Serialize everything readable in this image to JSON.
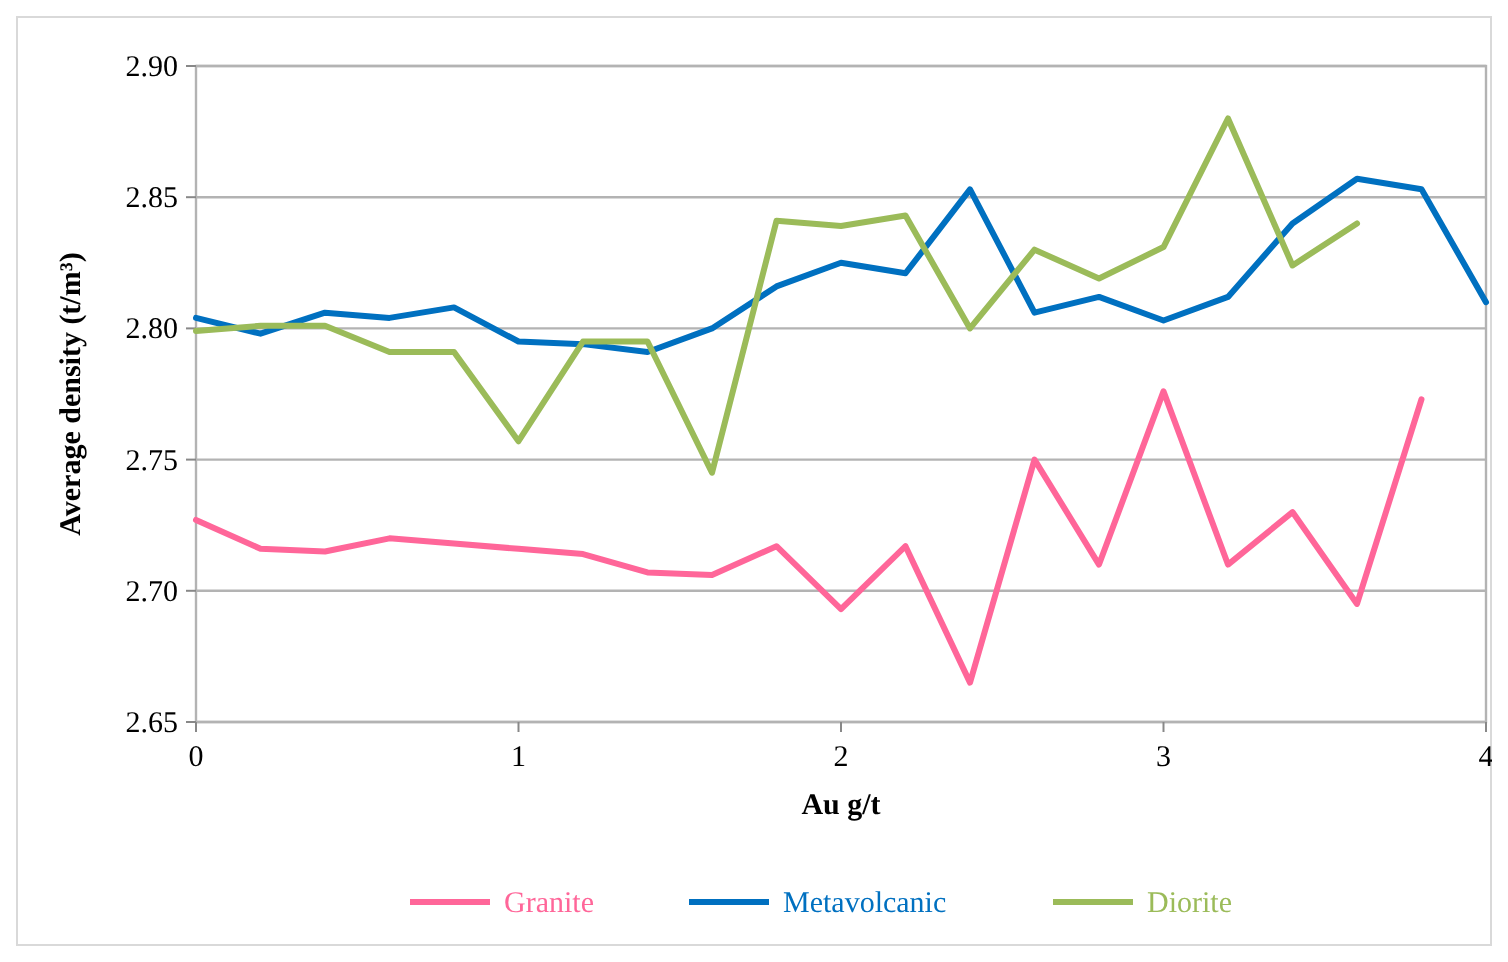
{
  "chart_data": {
    "type": "line",
    "xlabel": "Au g/t",
    "ylabel": "Average density (t/m³)",
    "xlim": [
      0,
      4
    ],
    "xticks": [
      0,
      1,
      2,
      3,
      4
    ],
    "ylim": [
      2.65,
      2.9
    ],
    "yticks": [
      {
        "value": 2.65,
        "label": "2.65"
      },
      {
        "value": 2.7,
        "label": "2.70"
      },
      {
        "value": 2.75,
        "label": "2.75"
      },
      {
        "value": 2.8,
        "label": "2.80"
      },
      {
        "value": 2.85,
        "label": "2.85"
      },
      {
        "value": 2.9,
        "label": "2.90"
      }
    ],
    "grid": "y",
    "legend": "bottom",
    "marker": "none",
    "line_style": "solid",
    "series": [
      {
        "name": "Granite",
        "color": "#ff6699",
        "x": [
          0,
          0.2,
          0.4,
          0.6,
          0.8,
          1,
          1.2,
          1.4,
          1.6,
          1.8,
          2,
          2.2,
          2.4,
          2.6,
          2.8,
          3,
          3.2,
          3.4,
          3.6,
          3.8
        ],
        "values": [
          2.727,
          2.716,
          2.715,
          2.72,
          2.718,
          2.716,
          2.714,
          2.707,
          2.706,
          2.717,
          2.693,
          2.717,
          2.665,
          2.75,
          2.71,
          2.776,
          2.71,
          2.73,
          2.695,
          2.773
        ]
      },
      {
        "name": "Metavolcanic",
        "color": "#0070c0",
        "x": [
          0,
          0.2,
          0.4,
          0.6,
          0.8,
          1,
          1.2,
          1.4,
          1.6,
          1.8,
          2,
          2.2,
          2.4,
          2.6,
          2.8,
          3,
          3.2,
          3.4,
          3.6,
          3.8,
          4
        ],
        "values": [
          2.804,
          2.798,
          2.806,
          2.804,
          2.808,
          2.795,
          2.794,
          2.791,
          2.8,
          2.816,
          2.825,
          2.821,
          2.853,
          2.806,
          2.812,
          2.803,
          2.812,
          2.84,
          2.857,
          2.853,
          2.81
        ]
      },
      {
        "name": "Diorite",
        "color": "#9bbb59",
        "x": [
          0,
          0.2,
          0.4,
          0.6,
          0.8,
          1,
          1.2,
          1.4,
          1.6,
          1.8,
          2,
          2.2,
          2.4,
          2.6,
          2.8,
          3,
          3.2,
          3.4,
          3.6
        ],
        "values": [
          2.799,
          2.801,
          2.801,
          2.791,
          2.791,
          2.757,
          2.795,
          2.795,
          2.745,
          2.841,
          2.839,
          2.843,
          2.8,
          2.83,
          2.819,
          2.831,
          2.88,
          2.824,
          2.84
        ]
      }
    ]
  }
}
